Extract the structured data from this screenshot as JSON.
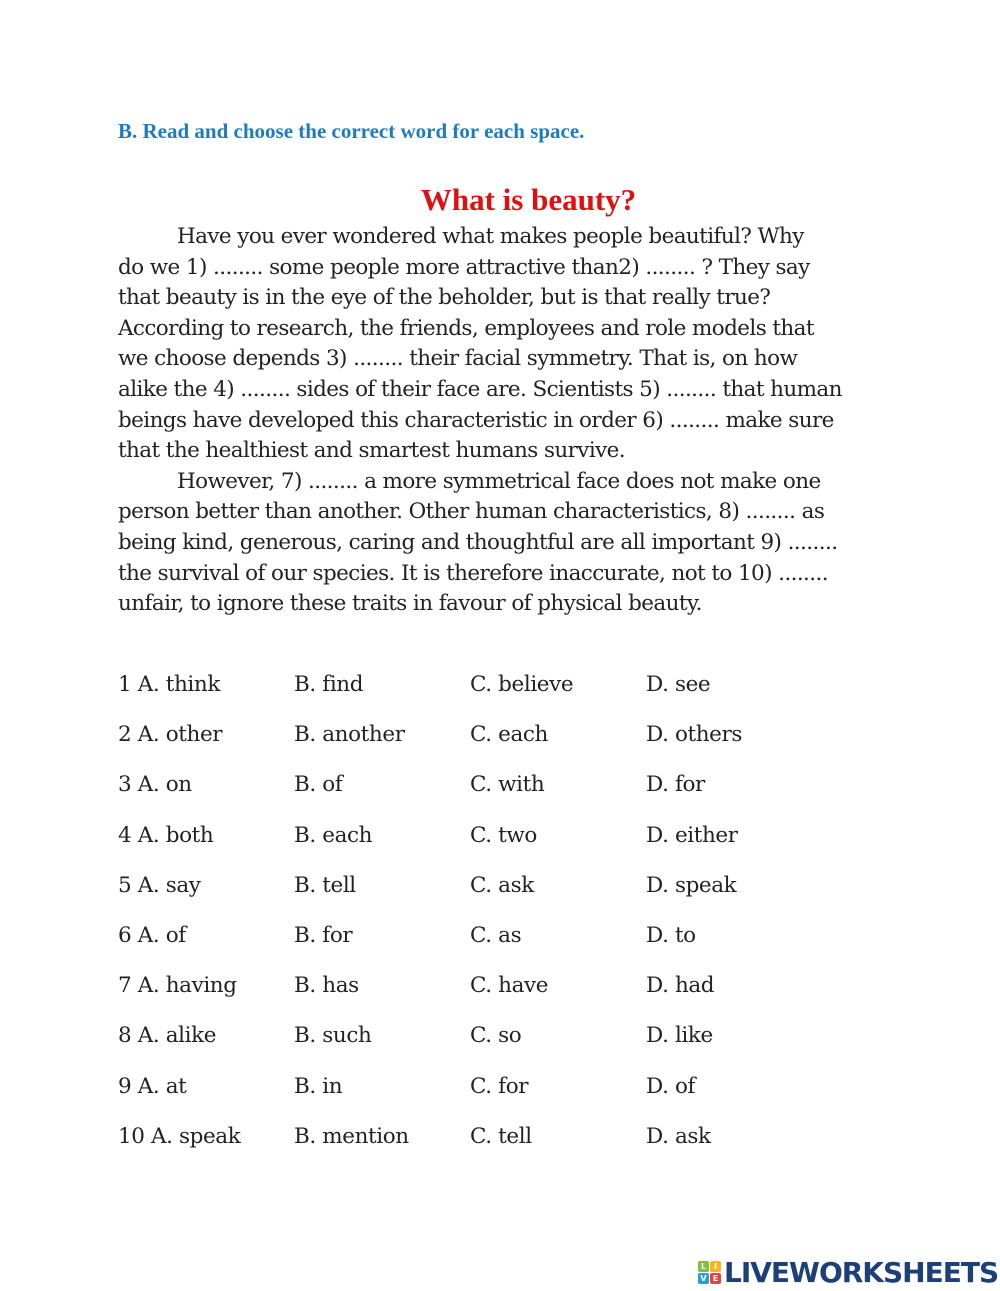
{
  "instruction": "B. Read and choose the correct word for each space.",
  "title": "What is beauty?",
  "passage_lines": [
    "Have you ever wondered what makes people beautiful? Why",
    "do we 1) ........ some people more attractive than2) ........ ? They say",
    "that beauty is in the eye of the beholder, but is that really true?",
    "According to research, the friends, employees and role models that",
    "we choose depends 3) ........ their facial symmetry. That is, on how",
    "alike the 4) ........ sides of their face are. Scientists 5) ........ that human",
    "beings have developed this characteristic in order 6) ........ make sure",
    "that the healthiest and smartest humans survive.",
    "However, 7) ........ a more symmetrical face does not make one",
    "person better than another. Other human characteristics, 8) ........ as",
    "being kind, generous, caring and thoughtful are all important 9) ........",
    "the survival of our species. It is therefore inaccurate, not to 10) ........",
    "unfair, to ignore these traits in favour of physical beauty."
  ],
  "options": [
    [
      "1 A. think",
      "B. find",
      "C. believe",
      "D. see"
    ],
    [
      "2 A. other",
      "B. another",
      "C. each",
      "D. others"
    ],
    [
      "3 A. on",
      "B. of",
      "C. with",
      "D. for"
    ],
    [
      "4 A. both",
      "B. each",
      "C. two",
      "D. either"
    ],
    [
      "5 A. say",
      "B. tell",
      "C. ask",
      "D. speak"
    ],
    [
      "6 A. of",
      "B. for",
      "C. as",
      "D. to"
    ],
    [
      "7 A. having",
      "B. has",
      "C. have",
      "D. had"
    ],
    [
      "8 A. alike",
      "B. such",
      "C. so",
      "D. like"
    ],
    [
      "9 A. at",
      "B. in",
      "C. for",
      "D. of"
    ],
    [
      "10 A. speak",
      "B. mention",
      "C. tell",
      "D. ask"
    ]
  ],
  "logo": {
    "text": "LIVEWORKSHEETS",
    "badge": [
      "L",
      "I",
      "V",
      "E"
    ],
    "badge_colors": [
      "#7cc142",
      "#f6b519",
      "#2a9fd8",
      "#e8413c"
    ],
    "color": "#1d3f7a"
  },
  "colors": {
    "instruction": "#1f7bc0",
    "title": "#e01010"
  }
}
